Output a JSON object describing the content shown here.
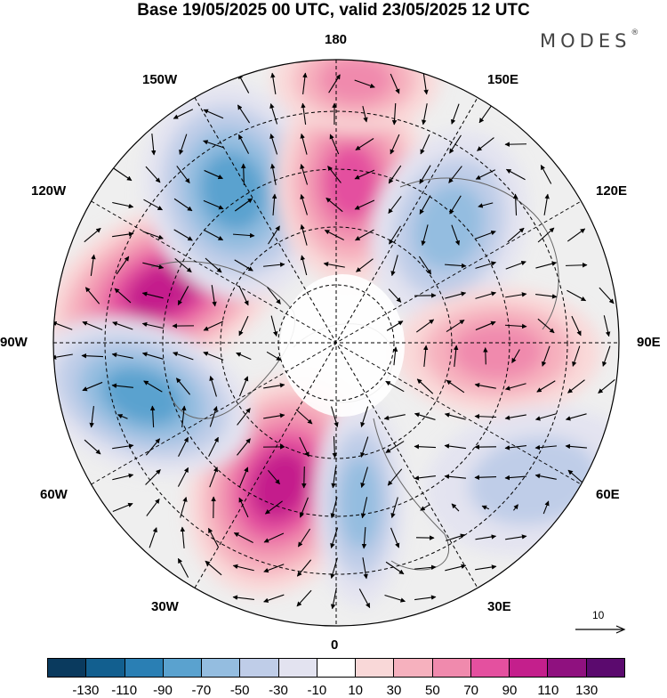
{
  "title": "Base 19/05/2025 00 UTC, valid 23/05/2025 12 UTC",
  "brand": "MODES",
  "brand_mark": "®",
  "longitude_labels": {
    "lon_180": "180",
    "lon_150e": "150E",
    "lon_120e": "120E",
    "lon_90e": "90E",
    "lon_60e": "60E",
    "lon_30e": "30E",
    "lon_0": "0",
    "lon_30w": "30W",
    "lon_60w": "60W",
    "lon_90w": "90W",
    "lon_120w": "120W",
    "lon_150w": "150W"
  },
  "reference_vector_label": "10",
  "colorbar": {
    "colors": [
      "#0a3a5e",
      "#125f8f",
      "#2a7fb4",
      "#5aa2cf",
      "#94bde0",
      "#bfcde8",
      "#e3e3f0",
      "#ffffff",
      "#f9d8d8",
      "#f6b1be",
      "#f08aad",
      "#e4509f",
      "#c41f8c",
      "#8f117f",
      "#5b0a6e"
    ],
    "ticks": [
      "-130",
      "-110",
      "-90",
      "-70",
      "-50",
      "-30",
      "-10",
      "10",
      "30",
      "50",
      "70",
      "90",
      "110",
      "130"
    ]
  },
  "anomaly_centers": [
    {
      "sign": "positive",
      "level": "90"
    },
    {
      "sign": "negative",
      "level": "-70"
    },
    {
      "sign": "positive",
      "level": "70"
    },
    {
      "sign": "negative",
      "level": "-50"
    },
    {
      "sign": "positive",
      "level": "90"
    },
    {
      "sign": "negative",
      "level": "-70"
    },
    {
      "sign": "positive",
      "level": "50"
    },
    {
      "sign": "negative",
      "level": "-30"
    },
    {
      "sign": "positive",
      "level": "50"
    },
    {
      "sign": "negative",
      "level": "-50"
    }
  ]
}
